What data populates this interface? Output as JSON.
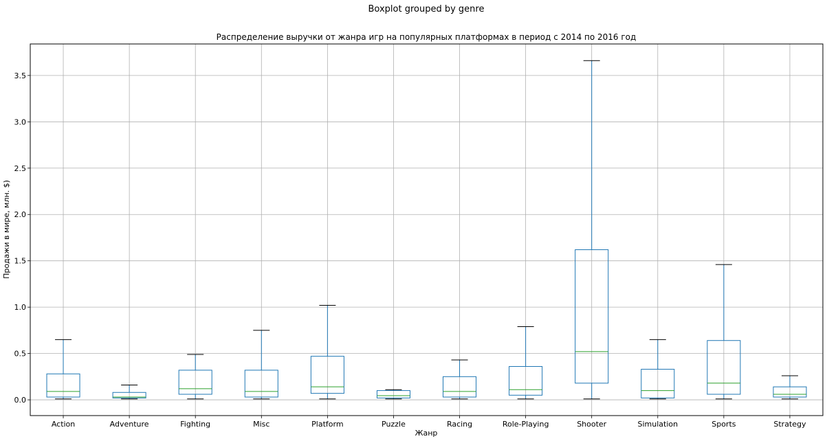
{
  "suptitle": "Boxplot grouped by genre",
  "chart_data": {
    "type": "boxplot",
    "title": "Распределение выручки от жанра игр на популярных платформах в период с 2014 по 2016 год",
    "xlabel": "Жанр",
    "ylabel": "Продажи в мире, млн. $)",
    "ylim": [
      -0.17,
      3.84
    ],
    "yticks": [
      0.0,
      0.5,
      1.0,
      1.5,
      2.0,
      2.5,
      3.0,
      3.5
    ],
    "ytick_labels": [
      "0.0",
      "0.5",
      "1.0",
      "1.5",
      "2.0",
      "2.5",
      "3.0",
      "3.5"
    ],
    "grid": true,
    "categories": [
      "Action",
      "Adventure",
      "Fighting",
      "Misc",
      "Platform",
      "Puzzle",
      "Racing",
      "Role-Playing",
      "Shooter",
      "Simulation",
      "Sports",
      "Strategy"
    ],
    "boxes": [
      {
        "whislo": 0.01,
        "q1": 0.03,
        "med": 0.09,
        "q3": 0.28,
        "whishi": 0.65
      },
      {
        "whislo": 0.01,
        "q1": 0.02,
        "med": 0.03,
        "q3": 0.08,
        "whishi": 0.16
      },
      {
        "whislo": 0.01,
        "q1": 0.06,
        "med": 0.12,
        "q3": 0.32,
        "whishi": 0.49
      },
      {
        "whislo": 0.01,
        "q1": 0.03,
        "med": 0.09,
        "q3": 0.32,
        "whishi": 0.75
      },
      {
        "whislo": 0.01,
        "q1": 0.07,
        "med": 0.14,
        "q3": 0.47,
        "whishi": 1.02
      },
      {
        "whislo": 0.01,
        "q1": 0.02,
        "med": 0.045,
        "q3": 0.1,
        "whishi": 0.11
      },
      {
        "whislo": 0.01,
        "q1": 0.03,
        "med": 0.09,
        "q3": 0.25,
        "whishi": 0.43
      },
      {
        "whislo": 0.01,
        "q1": 0.05,
        "med": 0.11,
        "q3": 0.36,
        "whishi": 0.79
      },
      {
        "whislo": 0.01,
        "q1": 0.18,
        "med": 0.52,
        "q3": 1.62,
        "whishi": 3.66
      },
      {
        "whislo": 0.01,
        "q1": 0.02,
        "med": 0.1,
        "q3": 0.33,
        "whishi": 0.65
      },
      {
        "whislo": 0.01,
        "q1": 0.06,
        "med": 0.18,
        "q3": 0.64,
        "whishi": 1.46
      },
      {
        "whislo": 0.01,
        "q1": 0.03,
        "med": 0.06,
        "q3": 0.14,
        "whishi": 0.26
      }
    ],
    "colors": {
      "box": "#1f77b4",
      "median": "#2ca02c",
      "whisker_cap": "#000000",
      "grid": "#b0b0b0"
    }
  }
}
